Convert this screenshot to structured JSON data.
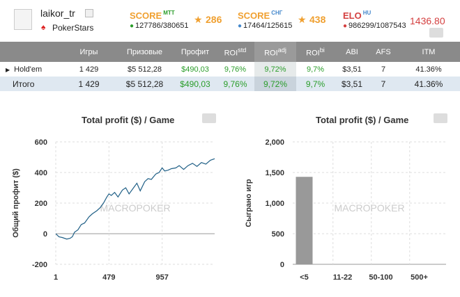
{
  "header": {
    "username": "laikor_tr",
    "room": "PokerStars",
    "score_mtt": {
      "title": "SCORE",
      "sup": "MTT",
      "rank": "127786/380651",
      "value": "286"
    },
    "score_sng": {
      "title": "SCORE",
      "sup": "СНГ",
      "rank": "17464/125615",
      "value": "438"
    },
    "elo": {
      "title": "ELO",
      "sup": "HU",
      "rank": "986299/1087543",
      "value": "1436.80"
    }
  },
  "stats_table": {
    "headers": [
      "Игры",
      "Призовые",
      "Профит",
      "ROI",
      "ROI",
      "ROI",
      "ABI",
      "AFS",
      "ITM"
    ],
    "roi_sups": [
      "std",
      "adj",
      "bi"
    ],
    "rows": [
      {
        "name": "Hold'em",
        "games": "1 429",
        "prizes": "$5 512,28",
        "profit": "$490,03",
        "roi_std": "9,76%",
        "roi_adj": "9,72%",
        "roi_bi": "9,7%",
        "abi": "$3,51",
        "afs": "7",
        "itm": "41.36%"
      },
      {
        "name": "Итого",
        "games": "1 429",
        "prizes": "$5 512,28",
        "profit": "$490,03",
        "roi_std": "9,76%",
        "roi_adj": "9,72%",
        "roi_bi": "9,7%",
        "abi": "$3,51",
        "afs": "7",
        "itm": "41.36%"
      }
    ]
  },
  "watermark": "MACROPOKER",
  "colors": {
    "positive": "#2a9d2a",
    "score": "#f0a030",
    "elo": "#d44040",
    "line": "#1f5f86",
    "bar": "#999999"
  },
  "chart_data": [
    {
      "type": "line",
      "title": "Total profit ($) / Game",
      "ylabel": "Общий профит ($)",
      "xlabel": "",
      "ylim": [
        -200,
        600
      ],
      "xlim": [
        1,
        1429
      ],
      "yticks": [
        -200,
        0,
        200,
        400,
        600
      ],
      "xtick_labels": [
        "1",
        "479",
        "957"
      ],
      "xtick_values": [
        1,
        479,
        957
      ],
      "series": [
        {
          "x": [
            1,
            30,
            60,
            100,
            130,
            150,
            170,
            200,
            230,
            260,
            300,
            330,
            370,
            400,
            430,
            460,
            479,
            500,
            530,
            560,
            600,
            630,
            660,
            700,
            730,
            760,
            800,
            830,
            860,
            900,
            930,
            957,
            980,
            1010,
            1040,
            1080,
            1110,
            1150,
            1190,
            1230,
            1270,
            1310,
            1350,
            1390,
            1429
          ],
          "y": [
            0,
            -20,
            -25,
            -35,
            -30,
            -20,
            10,
            25,
            60,
            70,
            110,
            130,
            150,
            170,
            200,
            240,
            260,
            250,
            270,
            240,
            285,
            300,
            260,
            300,
            330,
            280,
            340,
            360,
            355,
            390,
            400,
            430,
            410,
            415,
            425,
            430,
            445,
            420,
            445,
            460,
            440,
            465,
            455,
            480,
            490
          ]
        }
      ]
    },
    {
      "type": "bar",
      "title": "Total profit ($) / Game",
      "ylabel": "Сыграно игр",
      "xlabel": "",
      "ylim": [
        0,
        2000
      ],
      "yticks": [
        0,
        500,
        1000,
        1500,
        2000
      ],
      "ytick_labels": [
        "0",
        "500",
        "1,000",
        "1,500",
        "2,000"
      ],
      "categories": [
        "<5",
        "11-22",
        "50-100",
        "500+"
      ],
      "values": [
        1429,
        0,
        0,
        0
      ]
    }
  ]
}
